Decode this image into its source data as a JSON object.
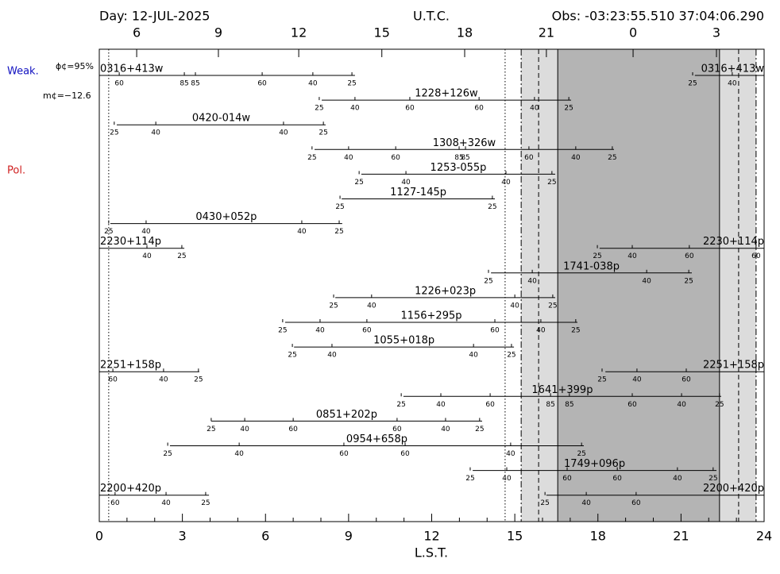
{
  "chart_data": {
    "type": "visibility",
    "header": {
      "day": "Day: 12-JUL-2025",
      "utc": "U.T.C.",
      "obs": "Obs: -03:23:55.510 37:04:06.290"
    },
    "xlabel": "L.S.T.",
    "xlim": [
      0,
      24
    ],
    "xticks": [
      0,
      3,
      6,
      9,
      12,
      15,
      18,
      21,
      24
    ],
    "xminorticks": [
      1,
      2,
      4,
      5,
      7,
      8,
      10,
      11,
      13,
      14,
      16,
      17,
      19,
      20,
      22,
      23
    ],
    "utc_ticks": [
      {
        "value": 1.35,
        "label": "6"
      },
      {
        "value": 4.3,
        "label": "9"
      },
      {
        "value": 7.2,
        "label": "12"
      },
      {
        "value": 10.2,
        "label": "15"
      },
      {
        "value": 13.19,
        "label": "18"
      },
      {
        "value": 16.14,
        "label": "21"
      },
      {
        "value": 19.27,
        "label": "0"
      },
      {
        "value": 22.28,
        "label": "3"
      }
    ],
    "legend": {
      "weak": "Weak.",
      "weak_color": "#1010c0",
      "pol": "Pol.",
      "pol_color": "#d02020",
      "moon_phase": "ϕ¢=95%",
      "moon_mag": "m¢=−12.6"
    },
    "night": {
      "dark": [
        16.55,
        22.39
      ],
      "twilight": [
        [
          15.23,
          16.55
        ],
        [
          22.39,
          23.71
        ]
      ],
      "dark_color": "#b4b4b4",
      "twilight_color": "#dcdcdc"
    },
    "vlines": [
      {
        "x": 0.34,
        "style": "dotted"
      },
      {
        "x": 14.65,
        "style": "dotted"
      },
      {
        "x": 15.23,
        "style": "dashdot"
      },
      {
        "x": 15.86,
        "style": "dashed"
      },
      {
        "x": 16.55,
        "style": "solid"
      },
      {
        "x": 22.39,
        "style": "solid"
      },
      {
        "x": 23.08,
        "style": "dashed"
      },
      {
        "x": 23.71,
        "style": "dashdot"
      }
    ],
    "sources": [
      {
        "name": "0316+413w",
        "segments": [
          [
            0,
            9.23
          ],
          [
            21.5,
            24
          ]
        ],
        "elevations": [
          {
            "lst": 0.72,
            "deg": 60
          },
          {
            "lst": 3.07,
            "deg": 85
          },
          {
            "lst": 3.47,
            "deg": 85
          },
          {
            "lst": 5.88,
            "deg": 60
          },
          {
            "lst": 7.71,
            "deg": 40
          },
          {
            "lst": 9.12,
            "deg": 25
          },
          {
            "lst": 21.42,
            "deg": 25
          },
          {
            "lst": 22.85,
            "deg": 40
          }
        ]
      },
      {
        "name": "1228+126w",
        "segments": [
          [
            8.03,
            17.03
          ]
        ],
        "elevations": [
          {
            "lst": 7.94,
            "deg": 25
          },
          {
            "lst": 9.23,
            "deg": 40
          },
          {
            "lst": 11.21,
            "deg": 60
          },
          {
            "lst": 13.71,
            "deg": 60
          },
          {
            "lst": 15.71,
            "deg": 40
          },
          {
            "lst": 16.95,
            "deg": 25
          }
        ]
      },
      {
        "name": "0420-014w",
        "segments": [
          [
            0.63,
            8.17
          ]
        ],
        "elevations": [
          {
            "lst": 0.54,
            "deg": 25
          },
          {
            "lst": 2.04,
            "deg": 40
          },
          {
            "lst": 6.65,
            "deg": 40
          },
          {
            "lst": 8.09,
            "deg": 25
          }
        ]
      },
      {
        "name": "1308+326w",
        "segments": [
          [
            7.77,
            18.58
          ]
        ],
        "elevations": [
          {
            "lst": 7.68,
            "deg": 25
          },
          {
            "lst": 9.0,
            "deg": 40
          },
          {
            "lst": 10.7,
            "deg": 60
          },
          {
            "lst": 12.99,
            "deg": 85
          },
          {
            "lst": 13.22,
            "deg": 85
          },
          {
            "lst": 15.51,
            "deg": 60
          },
          {
            "lst": 17.2,
            "deg": 40
          },
          {
            "lst": 18.52,
            "deg": 25
          }
        ]
      },
      {
        "name": "1253-055p",
        "segments": [
          [
            9.46,
            16.46
          ]
        ],
        "elevations": [
          {
            "lst": 9.38,
            "deg": 25
          },
          {
            "lst": 11.07,
            "deg": 40
          },
          {
            "lst": 14.68,
            "deg": 40
          },
          {
            "lst": 16.34,
            "deg": 25
          }
        ]
      },
      {
        "name": "1127-145p",
        "segments": [
          [
            8.75,
            14.28
          ]
        ],
        "elevations": [
          {
            "lst": 8.69,
            "deg": 25
          },
          {
            "lst": 14.19,
            "deg": 25
          }
        ]
      },
      {
        "name": "0430+052p",
        "segments": [
          [
            0.4,
            8.77
          ]
        ],
        "elevations": [
          {
            "lst": 0.34,
            "deg": 25
          },
          {
            "lst": 1.69,
            "deg": 40
          },
          {
            "lst": 7.31,
            "deg": 40
          },
          {
            "lst": 8.66,
            "deg": 25
          }
        ]
      },
      {
        "name": "2230+114p",
        "segments": [
          [
            0,
            3.07
          ],
          [
            18.06,
            24
          ]
        ],
        "elevations": [
          {
            "lst": 1.72,
            "deg": 40
          },
          {
            "lst": 2.98,
            "deg": 25
          },
          {
            "lst": 17.98,
            "deg": 25
          },
          {
            "lst": 19.24,
            "deg": 40
          },
          {
            "lst": 21.3,
            "deg": 60
          },
          {
            "lst": 23.71,
            "deg": 60
          }
        ]
      },
      {
        "name": "1741-038p",
        "segments": [
          [
            14.14,
            21.39
          ]
        ],
        "elevations": [
          {
            "lst": 14.05,
            "deg": 25
          },
          {
            "lst": 15.63,
            "deg": 40
          },
          {
            "lst": 19.76,
            "deg": 40
          },
          {
            "lst": 21.28,
            "deg": 25
          }
        ]
      },
      {
        "name": "1226+023p",
        "segments": [
          [
            8.52,
            16.46
          ]
        ],
        "elevations": [
          {
            "lst": 8.46,
            "deg": 25
          },
          {
            "lst": 9.83,
            "deg": 40
          },
          {
            "lst": 15.0,
            "deg": 40
          },
          {
            "lst": 16.37,
            "deg": 25
          }
        ]
      },
      {
        "name": "1156+295p",
        "segments": [
          [
            6.71,
            17.26
          ]
        ],
        "elevations": [
          {
            "lst": 6.62,
            "deg": 25
          },
          {
            "lst": 7.97,
            "deg": 40
          },
          {
            "lst": 9.66,
            "deg": 60
          },
          {
            "lst": 14.28,
            "deg": 60
          },
          {
            "lst": 15.94,
            "deg": 40
          },
          {
            "lst": 17.2,
            "deg": 25
          }
        ]
      },
      {
        "name": "1055+018p",
        "segments": [
          [
            7.03,
            14.97
          ]
        ],
        "elevations": [
          {
            "lst": 6.97,
            "deg": 25
          },
          {
            "lst": 8.4,
            "deg": 40
          },
          {
            "lst": 13.51,
            "deg": 40
          },
          {
            "lst": 14.88,
            "deg": 25
          }
        ]
      },
      {
        "name": "2251+158p",
        "segments": [
          [
            0,
            3.61
          ],
          [
            18.27,
            24
          ]
        ],
        "elevations": [
          {
            "lst": 0.49,
            "deg": 60
          },
          {
            "lst": 2.32,
            "deg": 40
          },
          {
            "lst": 3.58,
            "deg": 25
          },
          {
            "lst": 18.15,
            "deg": 25
          },
          {
            "lst": 19.41,
            "deg": 40
          },
          {
            "lst": 21.19,
            "deg": 60
          }
        ]
      },
      {
        "name": "1641+399p",
        "segments": [
          [
            10.98,
            22.45
          ]
        ],
        "elevations": [
          {
            "lst": 10.9,
            "deg": 25
          },
          {
            "lst": 12.33,
            "deg": 40
          },
          {
            "lst": 14.11,
            "deg": 60
          },
          {
            "lst": 16.29,
            "deg": 85
          },
          {
            "lst": 16.97,
            "deg": 85
          },
          {
            "lst": 19.24,
            "deg": 60
          },
          {
            "lst": 21.02,
            "deg": 40
          },
          {
            "lst": 22.39,
            "deg": 25
          }
        ]
      },
      {
        "name": "0851+202p",
        "segments": [
          [
            4.04,
            13.82
          ]
        ],
        "elevations": [
          {
            "lst": 4.04,
            "deg": 25
          },
          {
            "lst": 5.25,
            "deg": 40
          },
          {
            "lst": 7.0,
            "deg": 60
          },
          {
            "lst": 10.75,
            "deg": 60
          },
          {
            "lst": 12.5,
            "deg": 40
          },
          {
            "lst": 13.73,
            "deg": 25
          }
        ]
      },
      {
        "name": "0954+658p",
        "segments": [
          [
            2.55,
            17.49
          ]
        ],
        "elevations": [
          {
            "lst": 2.47,
            "deg": 25
          },
          {
            "lst": 5.05,
            "deg": 40
          },
          {
            "lst": 8.83,
            "deg": 60
          },
          {
            "lst": 11.04,
            "deg": 60
          },
          {
            "lst": 14.85,
            "deg": 40
          },
          {
            "lst": 17.41,
            "deg": 25
          }
        ]
      },
      {
        "name": "1749+096p",
        "segments": [
          [
            13.48,
            22.28
          ]
        ],
        "elevations": [
          {
            "lst": 13.39,
            "deg": 25
          },
          {
            "lst": 14.71,
            "deg": 40
          },
          {
            "lst": 16.89,
            "deg": 60
          },
          {
            "lst": 18.7,
            "deg": 60
          },
          {
            "lst": 20.87,
            "deg": 40
          },
          {
            "lst": 22.16,
            "deg": 25
          }
        ]
      },
      {
        "name": "2200+420p",
        "segments": [
          [
            0,
            3.96
          ],
          [
            16.14,
            24
          ]
        ],
        "elevations": [
          {
            "lst": 0.57,
            "deg": 60
          },
          {
            "lst": 2.41,
            "deg": 40
          },
          {
            "lst": 3.84,
            "deg": 25
          },
          {
            "lst": 16.09,
            "deg": 25
          },
          {
            "lst": 17.58,
            "deg": 40
          },
          {
            "lst": 19.38,
            "deg": 60
          }
        ]
      }
    ]
  }
}
